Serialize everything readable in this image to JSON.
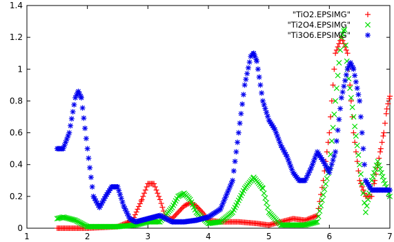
{
  "chart_data": {
    "type": "scatter",
    "xlim": [
      1,
      7
    ],
    "ylim": [
      0,
      1.4
    ],
    "xticks": [
      "1",
      "2",
      "3",
      "4",
      "5",
      "6",
      "7"
    ],
    "yticks": [
      "0",
      "0.2",
      "0.4",
      "0.6",
      "0.8",
      "1",
      "1.2",
      "1.4"
    ],
    "xlabel": "",
    "ylabel": "",
    "grid": false,
    "legend_position": "top-right",
    "series": [
      {
        "name": "\"TiO2.EPSIMG\"",
        "marker": "plus",
        "color": "#ff0000",
        "x": [
          1.5,
          2.0,
          2.5,
          2.75,
          2.9,
          3.0,
          3.1,
          3.2,
          3.3,
          3.4,
          3.5,
          3.6,
          3.7,
          3.8,
          3.9,
          4.0,
          4.2,
          4.5,
          4.8,
          5.0,
          5.2,
          5.4,
          5.6,
          5.8,
          5.9,
          6.0,
          6.1,
          6.2,
          6.3,
          6.4,
          6.5,
          6.6,
          6.7,
          6.75,
          6.8,
          6.85,
          6.9,
          6.95,
          7.0
        ],
        "y": [
          0.0,
          0.0,
          0.01,
          0.05,
          0.18,
          0.28,
          0.28,
          0.18,
          0.06,
          0.06,
          0.1,
          0.14,
          0.16,
          0.14,
          0.1,
          0.05,
          0.04,
          0.04,
          0.03,
          0.02,
          0.04,
          0.06,
          0.05,
          0.08,
          0.3,
          0.6,
          1.1,
          1.2,
          1.1,
          0.6,
          0.3,
          0.2,
          0.2,
          0.3,
          0.4,
          0.5,
          0.6,
          0.75,
          0.83
        ]
      },
      {
        "name": "\"Ti2O4.EPSIMG\"",
        "marker": "cross",
        "color": "#00dd00",
        "x": [
          1.5,
          1.6,
          1.8,
          2.0,
          2.2,
          2.5,
          2.8,
          3.0,
          3.2,
          3.4,
          3.5,
          3.6,
          3.7,
          3.8,
          4.0,
          4.2,
          4.4,
          4.6,
          4.75,
          4.9,
          5.0,
          5.2,
          5.4,
          5.6,
          5.8,
          6.0,
          6.1,
          6.2,
          6.25,
          6.3,
          6.4,
          6.5,
          6.6,
          6.7,
          6.8,
          6.9,
          7.0
        ],
        "y": [
          0.06,
          0.07,
          0.05,
          0.01,
          0.01,
          0.01,
          0.02,
          0.04,
          0.04,
          0.13,
          0.2,
          0.22,
          0.18,
          0.1,
          0.03,
          0.04,
          0.1,
          0.25,
          0.32,
          0.25,
          0.1,
          0.02,
          0.02,
          0.02,
          0.04,
          0.38,
          0.8,
          1.2,
          1.25,
          1.0,
          0.7,
          0.4,
          0.1,
          0.3,
          0.42,
          0.3,
          0.2
        ]
      },
      {
        "name": "\"Ti3O6.EPSIMG\"",
        "marker": "star",
        "color": "#0000ee",
        "x": [
          1.5,
          1.6,
          1.7,
          1.8,
          1.85,
          1.9,
          2.0,
          2.1,
          2.2,
          2.3,
          2.4,
          2.5,
          2.6,
          2.7,
          2.8,
          3.0,
          3.2,
          3.4,
          3.6,
          3.8,
          4.0,
          4.2,
          4.4,
          4.5,
          4.6,
          4.7,
          4.75,
          4.8,
          4.9,
          5.0,
          5.1,
          5.2,
          5.3,
          5.4,
          5.5,
          5.6,
          5.7,
          5.8,
          5.9,
          6.0,
          6.1,
          6.2,
          6.3,
          6.35,
          6.4,
          6.5,
          6.6,
          6.7,
          6.8,
          6.9,
          7.0
        ],
        "y": [
          0.5,
          0.5,
          0.6,
          0.82,
          0.86,
          0.82,
          0.5,
          0.2,
          0.13,
          0.2,
          0.26,
          0.26,
          0.14,
          0.06,
          0.04,
          0.06,
          0.08,
          0.04,
          0.04,
          0.05,
          0.07,
          0.12,
          0.3,
          0.6,
          0.9,
          1.08,
          1.1,
          1.05,
          0.8,
          0.68,
          0.62,
          0.52,
          0.45,
          0.35,
          0.3,
          0.3,
          0.38,
          0.48,
          0.42,
          0.35,
          0.48,
          0.82,
          1.0,
          1.04,
          1.0,
          0.8,
          0.3,
          0.24,
          0.24,
          0.24,
          0.24
        ]
      }
    ]
  }
}
